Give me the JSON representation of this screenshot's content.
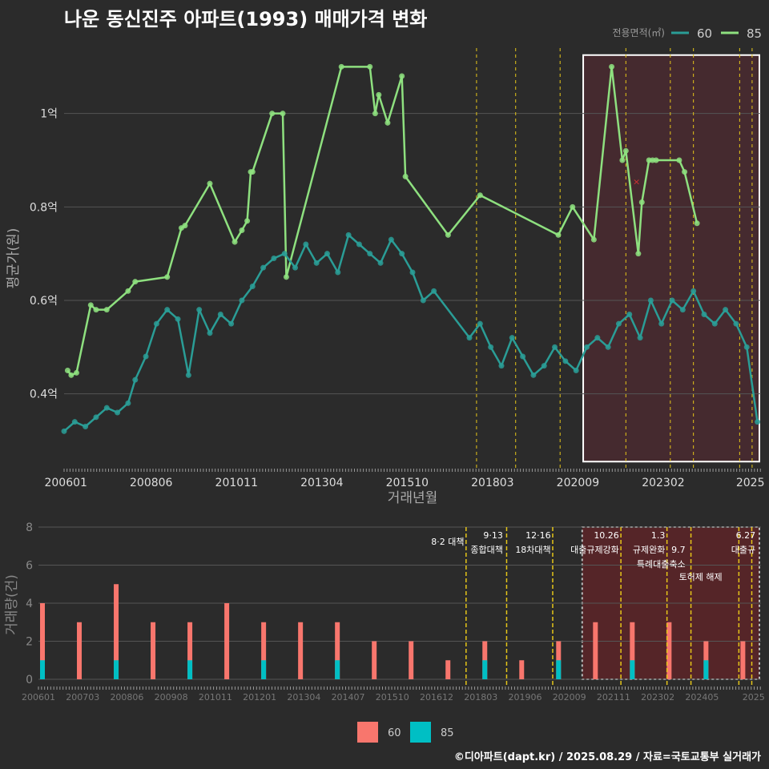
{
  "title": "나운 동신진주 아파트(1993) 매매가격 변화",
  "footer": "©디아파트(dapt.kr) / 2025.08.29 / 자료=국토교통부 실거래가",
  "colors": {
    "bg": "#2b2b2b",
    "grid": "#555555",
    "s60": "#2a9d96",
    "s85": "#8ee07f",
    "bar60": "#f8766d",
    "bar85": "#00bfc4",
    "policy": "#e6c619",
    "highlight_fill": "#4a2a30",
    "highlight_bar_fill": "#5a2528",
    "marker": "#d33333"
  },
  "chart_data": [
    {
      "type": "line",
      "title": "나운 동신진주 아파트(1993) 매매가격 변화",
      "xlabel": "거래년월",
      "ylabel": "평균가(원)",
      "x_tick_labels": [
        "200601",
        "200806",
        "201011",
        "201304",
        "201510",
        "201803",
        "202009",
        "202302",
        "2025"
      ],
      "y_ticks": [
        0.4,
        0.6,
        0.8,
        1.0
      ],
      "y_tick_labels": [
        "0.4억",
        "0.6억",
        "0.8억",
        "1억"
      ],
      "ylim": [
        0.24,
        1.14
      ],
      "xlim": [
        2006.0,
        2025.6
      ],
      "legend_title": "전용면적(㎡)",
      "legend_position": "top-right",
      "policy_dates": [
        2017.6,
        2018.7,
        2019.95,
        2021.8,
        2023.05,
        2023.7,
        2025.0,
        2025.35
      ],
      "highlight_range": [
        2020.6,
        2025.6
      ],
      "x_marker": {
        "x": 2022.1,
        "y": 0.855
      },
      "series": [
        {
          "name": "85",
          "x": [
            2006.1,
            2006.2,
            2006.35,
            2006.75,
            2006.9,
            2007.2,
            2007.8,
            2008.0,
            2008.9,
            2009.3,
            2009.4,
            2010.1,
            2010.8,
            2011.0,
            2011.15,
            2011.25,
            2011.3,
            2011.85,
            2012.15,
            2012.25,
            2013.8,
            2014.6,
            2014.75,
            2014.85,
            2015.1,
            2015.5,
            2015.6,
            2016.8,
            2017.7,
            2019.9,
            2020.3,
            2020.9,
            2021.4,
            2021.7,
            2021.8,
            2022.15,
            2022.25,
            2022.45,
            2022.55,
            2022.65,
            2023.3,
            2023.45,
            2023.8
          ],
          "values": [
            0.45,
            0.44,
            0.445,
            0.59,
            0.58,
            0.58,
            0.62,
            0.64,
            0.65,
            0.755,
            0.76,
            0.85,
            0.725,
            0.75,
            0.77,
            0.875,
            0.875,
            1.0,
            1.0,
            0.65,
            1.1,
            1.1,
            1.0,
            1.04,
            0.98,
            1.08,
            0.865,
            0.74,
            0.825,
            0.74,
            0.8,
            0.73,
            1.1,
            0.9,
            0.92,
            0.7,
            0.81,
            0.9,
            0.9,
            0.9,
            0.9,
            0.875,
            0.765
          ]
        },
        {
          "name": "60",
          "x": [
            2006.0,
            2006.3,
            2006.6,
            2006.9,
            2007.2,
            2007.5,
            2007.8,
            2008.0,
            2008.3,
            2008.6,
            2008.9,
            2009.2,
            2009.5,
            2009.8,
            2010.1,
            2010.4,
            2010.7,
            2011.0,
            2011.3,
            2011.6,
            2011.9,
            2012.2,
            2012.5,
            2012.8,
            2013.1,
            2013.4,
            2013.7,
            2014.0,
            2014.3,
            2014.6,
            2014.9,
            2015.2,
            2015.5,
            2015.8,
            2016.1,
            2016.4,
            2017.4,
            2017.7,
            2018.0,
            2018.3,
            2018.6,
            2018.9,
            2019.2,
            2019.5,
            2019.8,
            2020.1,
            2020.4,
            2020.7,
            2021.0,
            2021.3,
            2021.6,
            2021.9,
            2022.2,
            2022.5,
            2022.8,
            2023.1,
            2023.4,
            2023.7,
            2024.0,
            2024.3,
            2024.6,
            2024.9,
            2025.2,
            2025.5
          ],
          "values": [
            0.32,
            0.34,
            0.33,
            0.35,
            0.37,
            0.36,
            0.38,
            0.43,
            0.48,
            0.55,
            0.58,
            0.56,
            0.44,
            0.58,
            0.53,
            0.57,
            0.55,
            0.6,
            0.63,
            0.67,
            0.69,
            0.7,
            0.67,
            0.72,
            0.68,
            0.7,
            0.66,
            0.74,
            0.72,
            0.7,
            0.68,
            0.73,
            0.7,
            0.66,
            0.6,
            0.62,
            0.52,
            0.55,
            0.5,
            0.46,
            0.52,
            0.48,
            0.44,
            0.46,
            0.5,
            0.47,
            0.45,
            0.5,
            0.52,
            0.5,
            0.55,
            0.57,
            0.52,
            0.6,
            0.55,
            0.6,
            0.58,
            0.62,
            0.57,
            0.55,
            0.58,
            0.55,
            0.5,
            0.34
          ]
        }
      ]
    },
    {
      "type": "bar",
      "ylabel": "거래량(건)",
      "y_ticks": [
        0,
        2,
        4,
        6,
        8
      ],
      "ylim": [
        0,
        8
      ],
      "x_tick_labels": [
        "200601",
        "200703",
        "200806",
        "200908",
        "201011",
        "201201",
        "201304",
        "201407",
        "201510",
        "201612",
        "201803",
        "201906",
        "202009",
        "202111",
        "202302",
        "202405",
        "2025"
      ],
      "policy_labels": [
        {
          "date": "8·2 대책",
          "text": ""
        },
        {
          "date": "9·13",
          "text": "종합대책"
        },
        {
          "date": "12·16",
          "text": "18차대책"
        },
        {
          "date": "10.26",
          "text": "대출규제강화"
        },
        {
          "date": "1.3",
          "text": "규제완화"
        },
        {
          "date": "9.7",
          "text": "특례대출축소"
        },
        {
          "date": "",
          "text": "토허제 해제"
        },
        {
          "date": "6.27",
          "text": "대출규"
        }
      ],
      "series": [
        {
          "name": "60",
          "x": [
            2006.0,
            2007.0,
            2008.0,
            2009.0,
            2010.0,
            2011.0,
            2012.0,
            2013.0,
            2014.0,
            2015.0,
            2016.0,
            2017.0,
            2018.0,
            2019.0,
            2020.0,
            2021.0,
            2022.0,
            2023.0,
            2024.0,
            2025.0
          ],
          "values": [
            4,
            3,
            5,
            3,
            3,
            4,
            3,
            3,
            3,
            2,
            2,
            1,
            2,
            1,
            2,
            3,
            3,
            3,
            2,
            2
          ]
        },
        {
          "name": "85",
          "x": [
            2006.0,
            2008.0,
            2010.0,
            2012.0,
            2014.0,
            2016.0,
            2018.0,
            2020.0,
            2022.0,
            2024.0
          ],
          "values": [
            1,
            1,
            1,
            1,
            1,
            0,
            1,
            1,
            1,
            1
          ]
        }
      ]
    }
  ]
}
